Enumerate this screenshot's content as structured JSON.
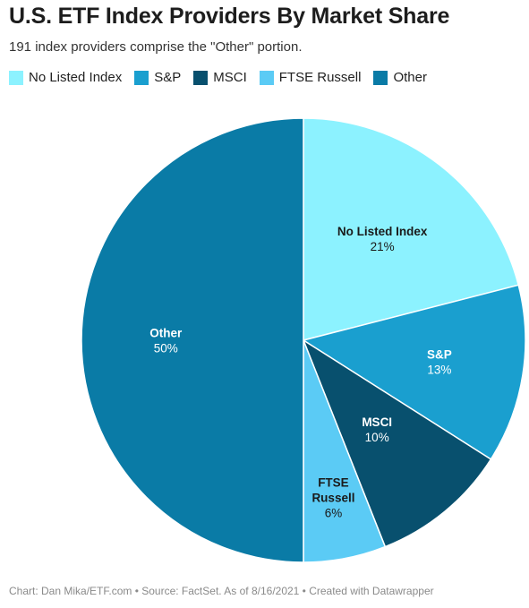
{
  "header": {
    "title": "U.S. ETF Index Providers By Market Share",
    "subtitle": "191 index providers comprise the \"Other\" portion."
  },
  "footer": {
    "credit": "Chart: Dan Mika/ETF.com • Source: FactSet. As of 8/16/2021 • Created with Datawrapper"
  },
  "chart_data": {
    "type": "pie",
    "title": "U.S. ETF Index Providers By Market Share",
    "legend_position": "top-left",
    "slices": [
      {
        "label": "No Listed Index",
        "value": 21,
        "display": "21%",
        "label_lines": [
          "No Listed Index"
        ],
        "color": "#8cf2ff",
        "label_color": "#1a1a1a"
      },
      {
        "label": "S&P",
        "value": 13,
        "display": "13%",
        "label_lines": [
          "S&P"
        ],
        "color": "#1a9fcf",
        "label_color": "#ffffff"
      },
      {
        "label": "MSCI",
        "value": 10,
        "display": "10%",
        "label_lines": [
          "MSCI"
        ],
        "color": "#08506e",
        "label_color": "#ffffff"
      },
      {
        "label": "FTSE Russell",
        "value": 6,
        "display": "6%",
        "label_lines": [
          "FTSE",
          "Russell"
        ],
        "color": "#5bcbf5",
        "label_color": "#1a1a1a"
      },
      {
        "label": "Other",
        "value": 50,
        "display": "50%",
        "label_lines": [
          "Other"
        ],
        "color": "#0a7ba6",
        "label_color": "#ffffff"
      }
    ]
  }
}
